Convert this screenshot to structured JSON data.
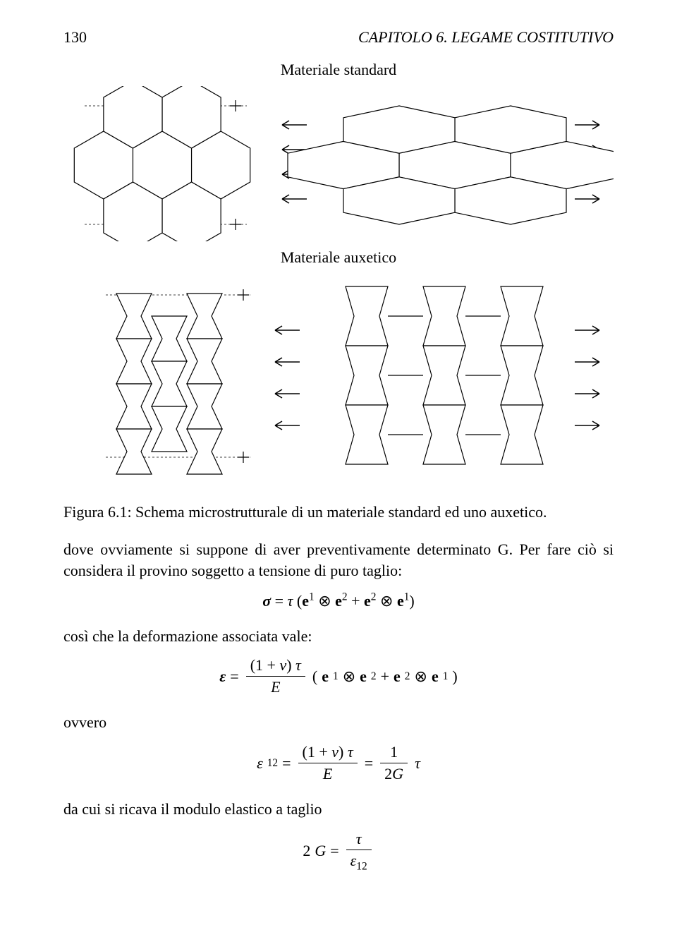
{
  "header": {
    "page_number": "130",
    "chapter": "CAPITOLO 6.  LEGAME COSTITUTIVO"
  },
  "figure1": {
    "caption_top": "Materiale standard",
    "type": "diagram",
    "hex_stroke": "#000000",
    "hex_fill": "#ffffff",
    "arrow_color": "#000000",
    "guide_dash_color": "#000000",
    "left_hex_radius": 48,
    "right_hex_hscale": 1.9,
    "right_hex_vscale": 0.7,
    "background": "#ffffff"
  },
  "figure2": {
    "caption_top": "Materiale auxetico",
    "type": "diagram",
    "cell_stroke": "#000000",
    "cell_fill": "#ffffff",
    "arrow_color": "#000000",
    "guide_dash_color": "#000000",
    "background": "#ffffff"
  },
  "fig_caption": "Figura 6.1: Schema microstrutturale di un materiale standard ed uno auxetico.",
  "text": {
    "p1": "dove ovviamente si suppone di aver preventivamente determinato G. Per fare ciò si considera il provino soggetto a tensione di puro taglio:",
    "p2": "così che la deformazione associata vale:",
    "p3": "ovvero",
    "p4": "da cui si ricava il modulo elastico a taglio"
  },
  "equations": {
    "eq1_html": "<span class='bold ital'>σ</span> = <span class='ital'>τ</span> (<span class='bold'>e</span><sup>1</sup> ⊗ <span class='bold'>e</span><sup>2</sup> + <span class='bold'>e</span><sup>2</sup> ⊗ <span class='bold'>e</span><sup>1</sup>)",
    "eq2_html": "<span class='eq-line'><span class='bold ital'>ε</span> = <span class='frac'><span class='num'>(1 + <span class='ital'>ν</span>) <span class='ital'>τ</span></span><span class='den'><span class='ital'>E</span></span></span> (<span class='bold'>e</span><sup>1</sup> ⊗ <span class='bold'>e</span><sup>2</sup> + <span class='bold'>e</span><sup>2</sup> ⊗ <span class='bold'>e</span><sup>1</sup>)</span>",
    "eq3_html": "<span class='eq-line'><span class='ital'>ε</span><sub>12</sub> = <span class='frac'><span class='num'>(1 + <span class='ital'>ν</span>) <span class='ital'>τ</span></span><span class='den'><span class='ital'>E</span></span></span> = <span class='frac'><span class='num'>1</span><span class='den'>2<span class='ital'>G</span></span></span><span class='ital'>τ</span></span>",
    "eq4_html": "<span class='eq-line'>2<span class='ital'>G</span> = <span class='frac'><span class='num'><span class='ital'>τ</span></span><span class='den'><span class='ital'>ε</span><sub>12</sub></span></span></span>"
  }
}
